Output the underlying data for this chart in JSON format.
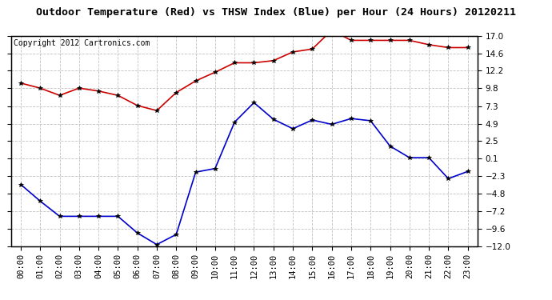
{
  "title": "Outdoor Temperature (Red) vs THSW Index (Blue) per Hour (24 Hours) 20120211",
  "copyright": "Copyright 2012 Cartronics.com",
  "hours": [
    "00:00",
    "01:00",
    "02:00",
    "03:00",
    "04:00",
    "05:00",
    "06:00",
    "07:00",
    "08:00",
    "09:00",
    "10:00",
    "11:00",
    "12:00",
    "13:00",
    "14:00",
    "15:00",
    "16:00",
    "17:00",
    "18:00",
    "19:00",
    "20:00",
    "21:00",
    "22:00",
    "23:00"
  ],
  "red_temp": [
    10.5,
    9.8,
    8.8,
    9.8,
    9.4,
    8.8,
    7.4,
    6.7,
    9.2,
    10.8,
    12.0,
    13.3,
    13.3,
    13.6,
    14.8,
    15.2,
    17.8,
    16.4,
    16.4,
    16.4,
    16.4,
    15.8,
    15.4,
    15.4
  ],
  "blue_thsw": [
    -3.5,
    -5.8,
    -7.9,
    -7.9,
    -7.9,
    -7.9,
    -10.2,
    -11.8,
    -10.4,
    -1.8,
    -1.3,
    5.1,
    7.8,
    5.5,
    4.2,
    5.4,
    4.8,
    5.6,
    5.3,
    1.8,
    0.2,
    0.2,
    -2.7,
    -1.7
  ],
  "ylim": [
    -12.0,
    17.0
  ],
  "yticks": [
    -12.0,
    -9.6,
    -7.2,
    -4.8,
    -2.3,
    0.1,
    2.5,
    4.9,
    7.3,
    9.8,
    12.2,
    14.6,
    17.0
  ],
  "red_color": "#cc0000",
  "blue_color": "#0000cc",
  "bg_color": "#ffffff",
  "grid_color": "#c0c0c0",
  "title_fontsize": 9.5,
  "copyright_fontsize": 7.0,
  "tick_fontsize": 7.5,
  "ytick_fontsize": 7.5
}
